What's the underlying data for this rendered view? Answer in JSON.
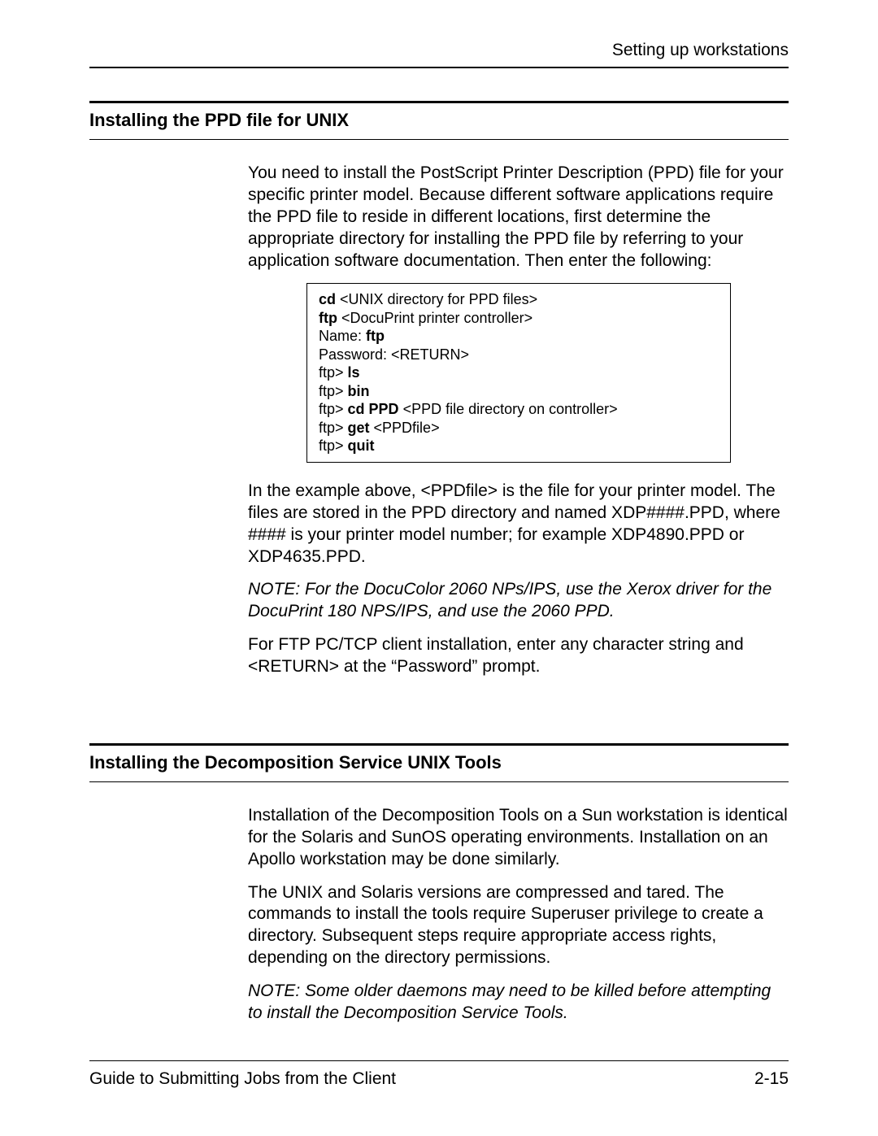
{
  "header": {
    "running_head": "Setting up workstations"
  },
  "section1": {
    "title": "Installing the PPD file for UNIX",
    "para1": "You need to install the PostScript Printer Description (PPD) file for your specific printer model. Because different software applications require the PPD file to reside in different locations, first determine the appropriate directory for installing the PPD file by referring to your application software documentation. Then enter the following:",
    "code": {
      "l1a": "cd",
      "l1b": " <UNIX directory for PPD files>",
      "l2a": "ftp",
      "l2b": " <DocuPrint printer controller>",
      "l3a": "Name: ",
      "l3b": "ftp",
      "l4": "Password: <RETURN>",
      "l5a": "ftp> ",
      "l5b": "ls",
      "l6a": "ftp> ",
      "l6b": "bin",
      "l7a": "ftp> ",
      "l7b": "cd PPD",
      "l7c": " <PPD file directory on controller>",
      "l8a": "ftp> ",
      "l8b": "get",
      "l8c": " <PPDfile>",
      "l9a": "ftp> ",
      "l9b": "quit"
    },
    "para2": "In the example above, <PPDfile> is the file for your printer model. The files are stored in the PPD directory and named XDP####.PPD, where #### is your printer model number; for example XDP4890.PPD or XDP4635.PPD.",
    "note": "NOTE:  For the DocuColor 2060 NPs/IPS, use the Xerox driver for the DocuPrint 180 NPS/IPS, and use the 2060 PPD.",
    "para3": "For FTP PC/TCP client installation, enter any character string and <RETURN> at the “Password” prompt."
  },
  "section2": {
    "title": "Installing the Decomposition Service UNIX Tools",
    "para1": "Installation of the Decomposition Tools on a Sun workstation is identical for the Solaris and SunOS operating environments. Installation on an Apollo workstation may be done similarly.",
    "para2": "The UNIX and Solaris versions are compressed and tared. The commands to install the tools require Superuser privilege to create a directory. Subsequent steps require appropriate access rights, depending on the directory permissions.",
    "note": "NOTE:  Some older daemons may need to be killed before attempting to install the Decomposition Service Tools."
  },
  "footer": {
    "left": "Guide to Submitting Jobs from the Client",
    "right": "2-15"
  }
}
